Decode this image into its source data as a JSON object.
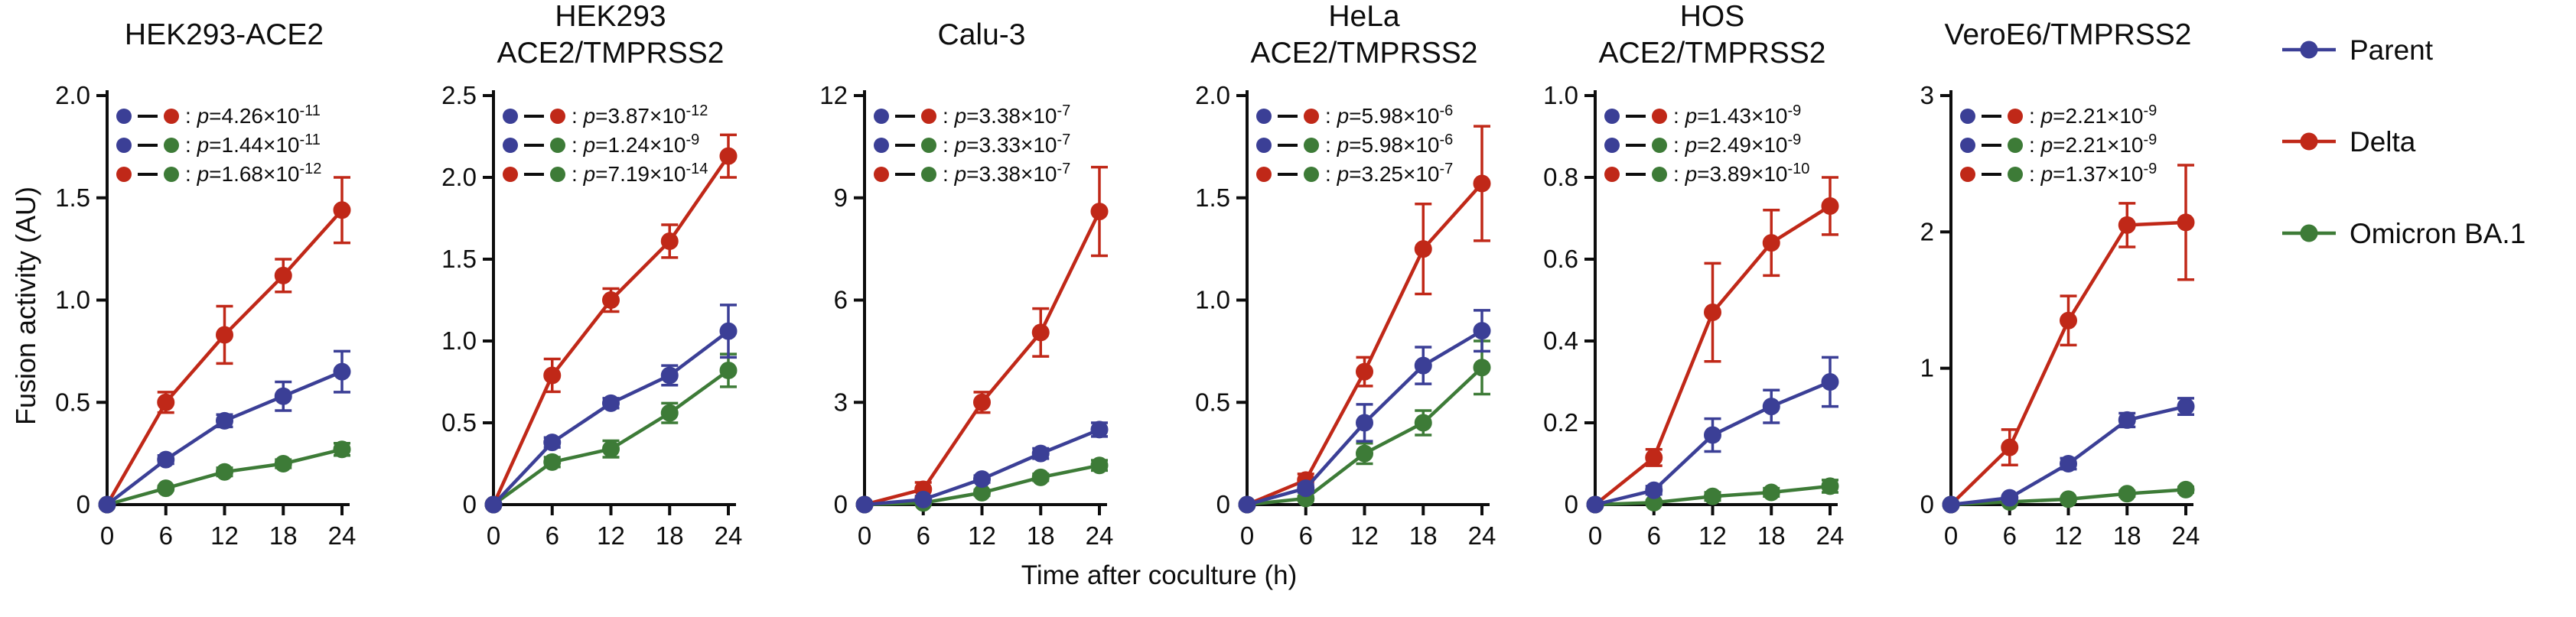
{
  "figure": {
    "y_axis_label": "Fusion activity (AU)",
    "x_axis_label": "Time after coculture (h)",
    "pair_separator": ":",
    "text_color": "#0d0d0d"
  },
  "legend": {
    "items": [
      {
        "key": "parent",
        "label": "Parent",
        "color": "#3b3f96"
      },
      {
        "key": "delta",
        "label": "Delta",
        "color": "#c02818"
      },
      {
        "key": "omicron",
        "label": "Omicron BA.1",
        "color": "#3d7b37"
      }
    ]
  },
  "chart_data": [
    {
      "type": "line",
      "title_lines": [
        "HEK293-ACE2"
      ],
      "x": [
        0,
        6,
        12,
        18,
        24
      ],
      "xtick_labels": [
        "0",
        "6",
        "12",
        "18",
        "24"
      ],
      "ylim": [
        0,
        2.0
      ],
      "yticks": [
        0,
        0.5,
        1.0,
        1.5,
        2.0
      ],
      "ytick_labels": [
        "0",
        "0.5",
        "1.0",
        "1.5",
        "2.0"
      ],
      "series": [
        {
          "key": "parent",
          "name": "Parent",
          "values": [
            0,
            0.22,
            0.41,
            0.53,
            0.65
          ],
          "errors": [
            0,
            0.02,
            0.03,
            0.07,
            0.1
          ]
        },
        {
          "key": "delta",
          "name": "Delta",
          "values": [
            0,
            0.5,
            0.83,
            1.12,
            1.44
          ],
          "errors": [
            0,
            0.05,
            0.14,
            0.08,
            0.16
          ]
        },
        {
          "key": "omicron",
          "name": "Omicron BA.1",
          "values": [
            0,
            0.08,
            0.16,
            0.2,
            0.27
          ],
          "errors": [
            0,
            0.01,
            0.02,
            0.02,
            0.03
          ]
        }
      ],
      "pvalues": [
        {
          "pair": [
            "parent",
            "delta"
          ],
          "text": "p=4.26×10",
          "exp": "-11"
        },
        {
          "pair": [
            "parent",
            "omicron"
          ],
          "text": "p=1.44×10",
          "exp": "-11"
        },
        {
          "pair": [
            "delta",
            "omicron"
          ],
          "text": "p=1.68×10",
          "exp": "-12"
        }
      ]
    },
    {
      "type": "line",
      "title_lines": [
        "HEK293",
        "ACE2/TMPRSS2"
      ],
      "x": [
        0,
        6,
        12,
        18,
        24
      ],
      "xtick_labels": [
        "0",
        "6",
        "12",
        "18",
        "24"
      ],
      "ylim": [
        0,
        2.5
      ],
      "yticks": [
        0,
        0.5,
        1.0,
        1.5,
        2.0,
        2.5
      ],
      "ytick_labels": [
        "0",
        "0.5",
        "1.0",
        "1.5",
        "2.0",
        "2.5"
      ],
      "series": [
        {
          "key": "parent",
          "name": "Parent",
          "values": [
            0,
            0.38,
            0.62,
            0.79,
            1.06
          ],
          "errors": [
            0,
            0.03,
            0.03,
            0.06,
            0.16
          ]
        },
        {
          "key": "delta",
          "name": "Delta",
          "values": [
            0,
            0.79,
            1.25,
            1.61,
            2.13
          ],
          "errors": [
            0,
            0.1,
            0.07,
            0.1,
            0.13
          ]
        },
        {
          "key": "omicron",
          "name": "Omicron BA.1",
          "values": [
            0,
            0.26,
            0.34,
            0.56,
            0.82
          ],
          "errors": [
            0,
            0.03,
            0.05,
            0.06,
            0.1
          ]
        }
      ],
      "pvalues": [
        {
          "pair": [
            "parent",
            "delta"
          ],
          "text": "p=3.87×10",
          "exp": "-12"
        },
        {
          "pair": [
            "parent",
            "omicron"
          ],
          "text": "p=1.24×10",
          "exp": "-9"
        },
        {
          "pair": [
            "delta",
            "omicron"
          ],
          "text": "p=7.19×10",
          "exp": "-14"
        }
      ]
    },
    {
      "type": "line",
      "title_lines": [
        "Calu-3"
      ],
      "x": [
        0,
        6,
        12,
        18,
        24
      ],
      "xtick_labels": [
        "0",
        "6",
        "12",
        "18",
        "24"
      ],
      "ylim": [
        0,
        12
      ],
      "yticks": [
        0,
        3,
        6,
        9,
        12
      ],
      "ytick_labels": [
        "0",
        "3",
        "6",
        "9",
        "12"
      ],
      "series": [
        {
          "key": "parent",
          "name": "Parent",
          "values": [
            0,
            0.15,
            0.75,
            1.5,
            2.2
          ],
          "errors": [
            0,
            0.05,
            0.1,
            0.15,
            0.2
          ]
        },
        {
          "key": "delta",
          "name": "Delta",
          "values": [
            0,
            0.45,
            3.0,
            5.05,
            8.6
          ],
          "errors": [
            0,
            0.2,
            0.3,
            0.7,
            1.3
          ]
        },
        {
          "key": "omicron",
          "name": "Omicron BA.1",
          "values": [
            0,
            0.05,
            0.35,
            0.8,
            1.15
          ],
          "errors": [
            0,
            0.03,
            0.08,
            0.1,
            0.15
          ]
        }
      ],
      "pvalues": [
        {
          "pair": [
            "parent",
            "delta"
          ],
          "text": "p=3.38×10",
          "exp": "-7"
        },
        {
          "pair": [
            "parent",
            "omicron"
          ],
          "text": "p=3.33×10",
          "exp": "-7"
        },
        {
          "pair": [
            "delta",
            "omicron"
          ],
          "text": "p=3.38×10",
          "exp": "-7"
        }
      ]
    },
    {
      "type": "line",
      "title_lines": [
        "HeLa",
        "ACE2/TMPRSS2"
      ],
      "x": [
        0,
        6,
        12,
        18,
        24
      ],
      "xtick_labels": [
        "0",
        "6",
        "12",
        "18",
        "24"
      ],
      "ylim": [
        0,
        2.0
      ],
      "yticks": [
        0,
        0.5,
        1.0,
        1.5,
        2.0
      ],
      "ytick_labels": [
        "0",
        "0.5",
        "1.0",
        "1.5",
        "2.0"
      ],
      "series": [
        {
          "key": "parent",
          "name": "Parent",
          "values": [
            0,
            0.08,
            0.4,
            0.68,
            0.85
          ],
          "errors": [
            0,
            0.02,
            0.09,
            0.09,
            0.1
          ]
        },
        {
          "key": "delta",
          "name": "Delta",
          "values": [
            0,
            0.12,
            0.65,
            1.25,
            1.57
          ],
          "errors": [
            0,
            0.03,
            0.07,
            0.22,
            0.28
          ]
        },
        {
          "key": "omicron",
          "name": "Omicron BA.1",
          "values": [
            0,
            0.03,
            0.25,
            0.4,
            0.67
          ],
          "errors": [
            0,
            0.01,
            0.05,
            0.06,
            0.13
          ]
        }
      ],
      "pvalues": [
        {
          "pair": [
            "parent",
            "delta"
          ],
          "text": "p=5.98×10",
          "exp": "-6"
        },
        {
          "pair": [
            "parent",
            "omicron"
          ],
          "text": "p=5.98×10",
          "exp": "-6"
        },
        {
          "pair": [
            "delta",
            "omicron"
          ],
          "text": "p=3.25×10",
          "exp": "-7"
        }
      ]
    },
    {
      "type": "line",
      "title_lines": [
        "HOS",
        "ACE2/TMPRSS2"
      ],
      "x": [
        0,
        6,
        12,
        18,
        24
      ],
      "xtick_labels": [
        "0",
        "6",
        "12",
        "18",
        "24"
      ],
      "ylim": [
        0,
        1.0
      ],
      "yticks": [
        0,
        0.2,
        0.4,
        0.6,
        0.8,
        1.0
      ],
      "ytick_labels": [
        "0",
        "0.2",
        "0.4",
        "0.6",
        "0.8",
        "1.0"
      ],
      "series": [
        {
          "key": "parent",
          "name": "Parent",
          "values": [
            0,
            0.035,
            0.17,
            0.24,
            0.3
          ],
          "errors": [
            0,
            0.01,
            0.04,
            0.04,
            0.06
          ]
        },
        {
          "key": "delta",
          "name": "Delta",
          "values": [
            0,
            0.115,
            0.47,
            0.64,
            0.73
          ],
          "errors": [
            0,
            0.02,
            0.12,
            0.08,
            0.07
          ]
        },
        {
          "key": "omicron",
          "name": "Omicron BA.1",
          "values": [
            0,
            0.005,
            0.02,
            0.03,
            0.045
          ],
          "errors": [
            0,
            0.005,
            0.01,
            0.01,
            0.015
          ]
        }
      ],
      "pvalues": [
        {
          "pair": [
            "parent",
            "delta"
          ],
          "text": "p=1.43×10",
          "exp": "-9"
        },
        {
          "pair": [
            "parent",
            "omicron"
          ],
          "text": "p=2.49×10",
          "exp": "-9"
        },
        {
          "pair": [
            "delta",
            "omicron"
          ],
          "text": "p=3.89×10",
          "exp": "-10"
        }
      ]
    },
    {
      "type": "line",
      "title_lines": [
        "VeroE6/TMPRSS2"
      ],
      "x": [
        0,
        6,
        12,
        18,
        24
      ],
      "xtick_labels": [
        "0",
        "6",
        "12",
        "18",
        "24"
      ],
      "ylim": [
        0,
        3
      ],
      "yticks": [
        0,
        1,
        2,
        3
      ],
      "ytick_labels": [
        "0",
        "1",
        "2",
        "3"
      ],
      "series": [
        {
          "key": "parent",
          "name": "Parent",
          "values": [
            0,
            0.05,
            0.3,
            0.62,
            0.72
          ],
          "errors": [
            0,
            0.01,
            0.04,
            0.05,
            0.06
          ]
        },
        {
          "key": "delta",
          "name": "Delta",
          "values": [
            0,
            0.42,
            1.35,
            2.05,
            2.07
          ],
          "errors": [
            0,
            0.13,
            0.18,
            0.16,
            0.42
          ]
        },
        {
          "key": "omicron",
          "name": "Omicron BA.1",
          "values": [
            0,
            0.02,
            0.04,
            0.08,
            0.11
          ],
          "errors": [
            0,
            0.005,
            0.01,
            0.02,
            0.02
          ]
        }
      ],
      "pvalues": [
        {
          "pair": [
            "parent",
            "delta"
          ],
          "text": "p=2.21×10",
          "exp": "-9"
        },
        {
          "pair": [
            "parent",
            "omicron"
          ],
          "text": "p=2.21×10",
          "exp": "-9"
        },
        {
          "pair": [
            "delta",
            "omicron"
          ],
          "text": "p=1.37×10",
          "exp": "-9"
        }
      ]
    }
  ]
}
